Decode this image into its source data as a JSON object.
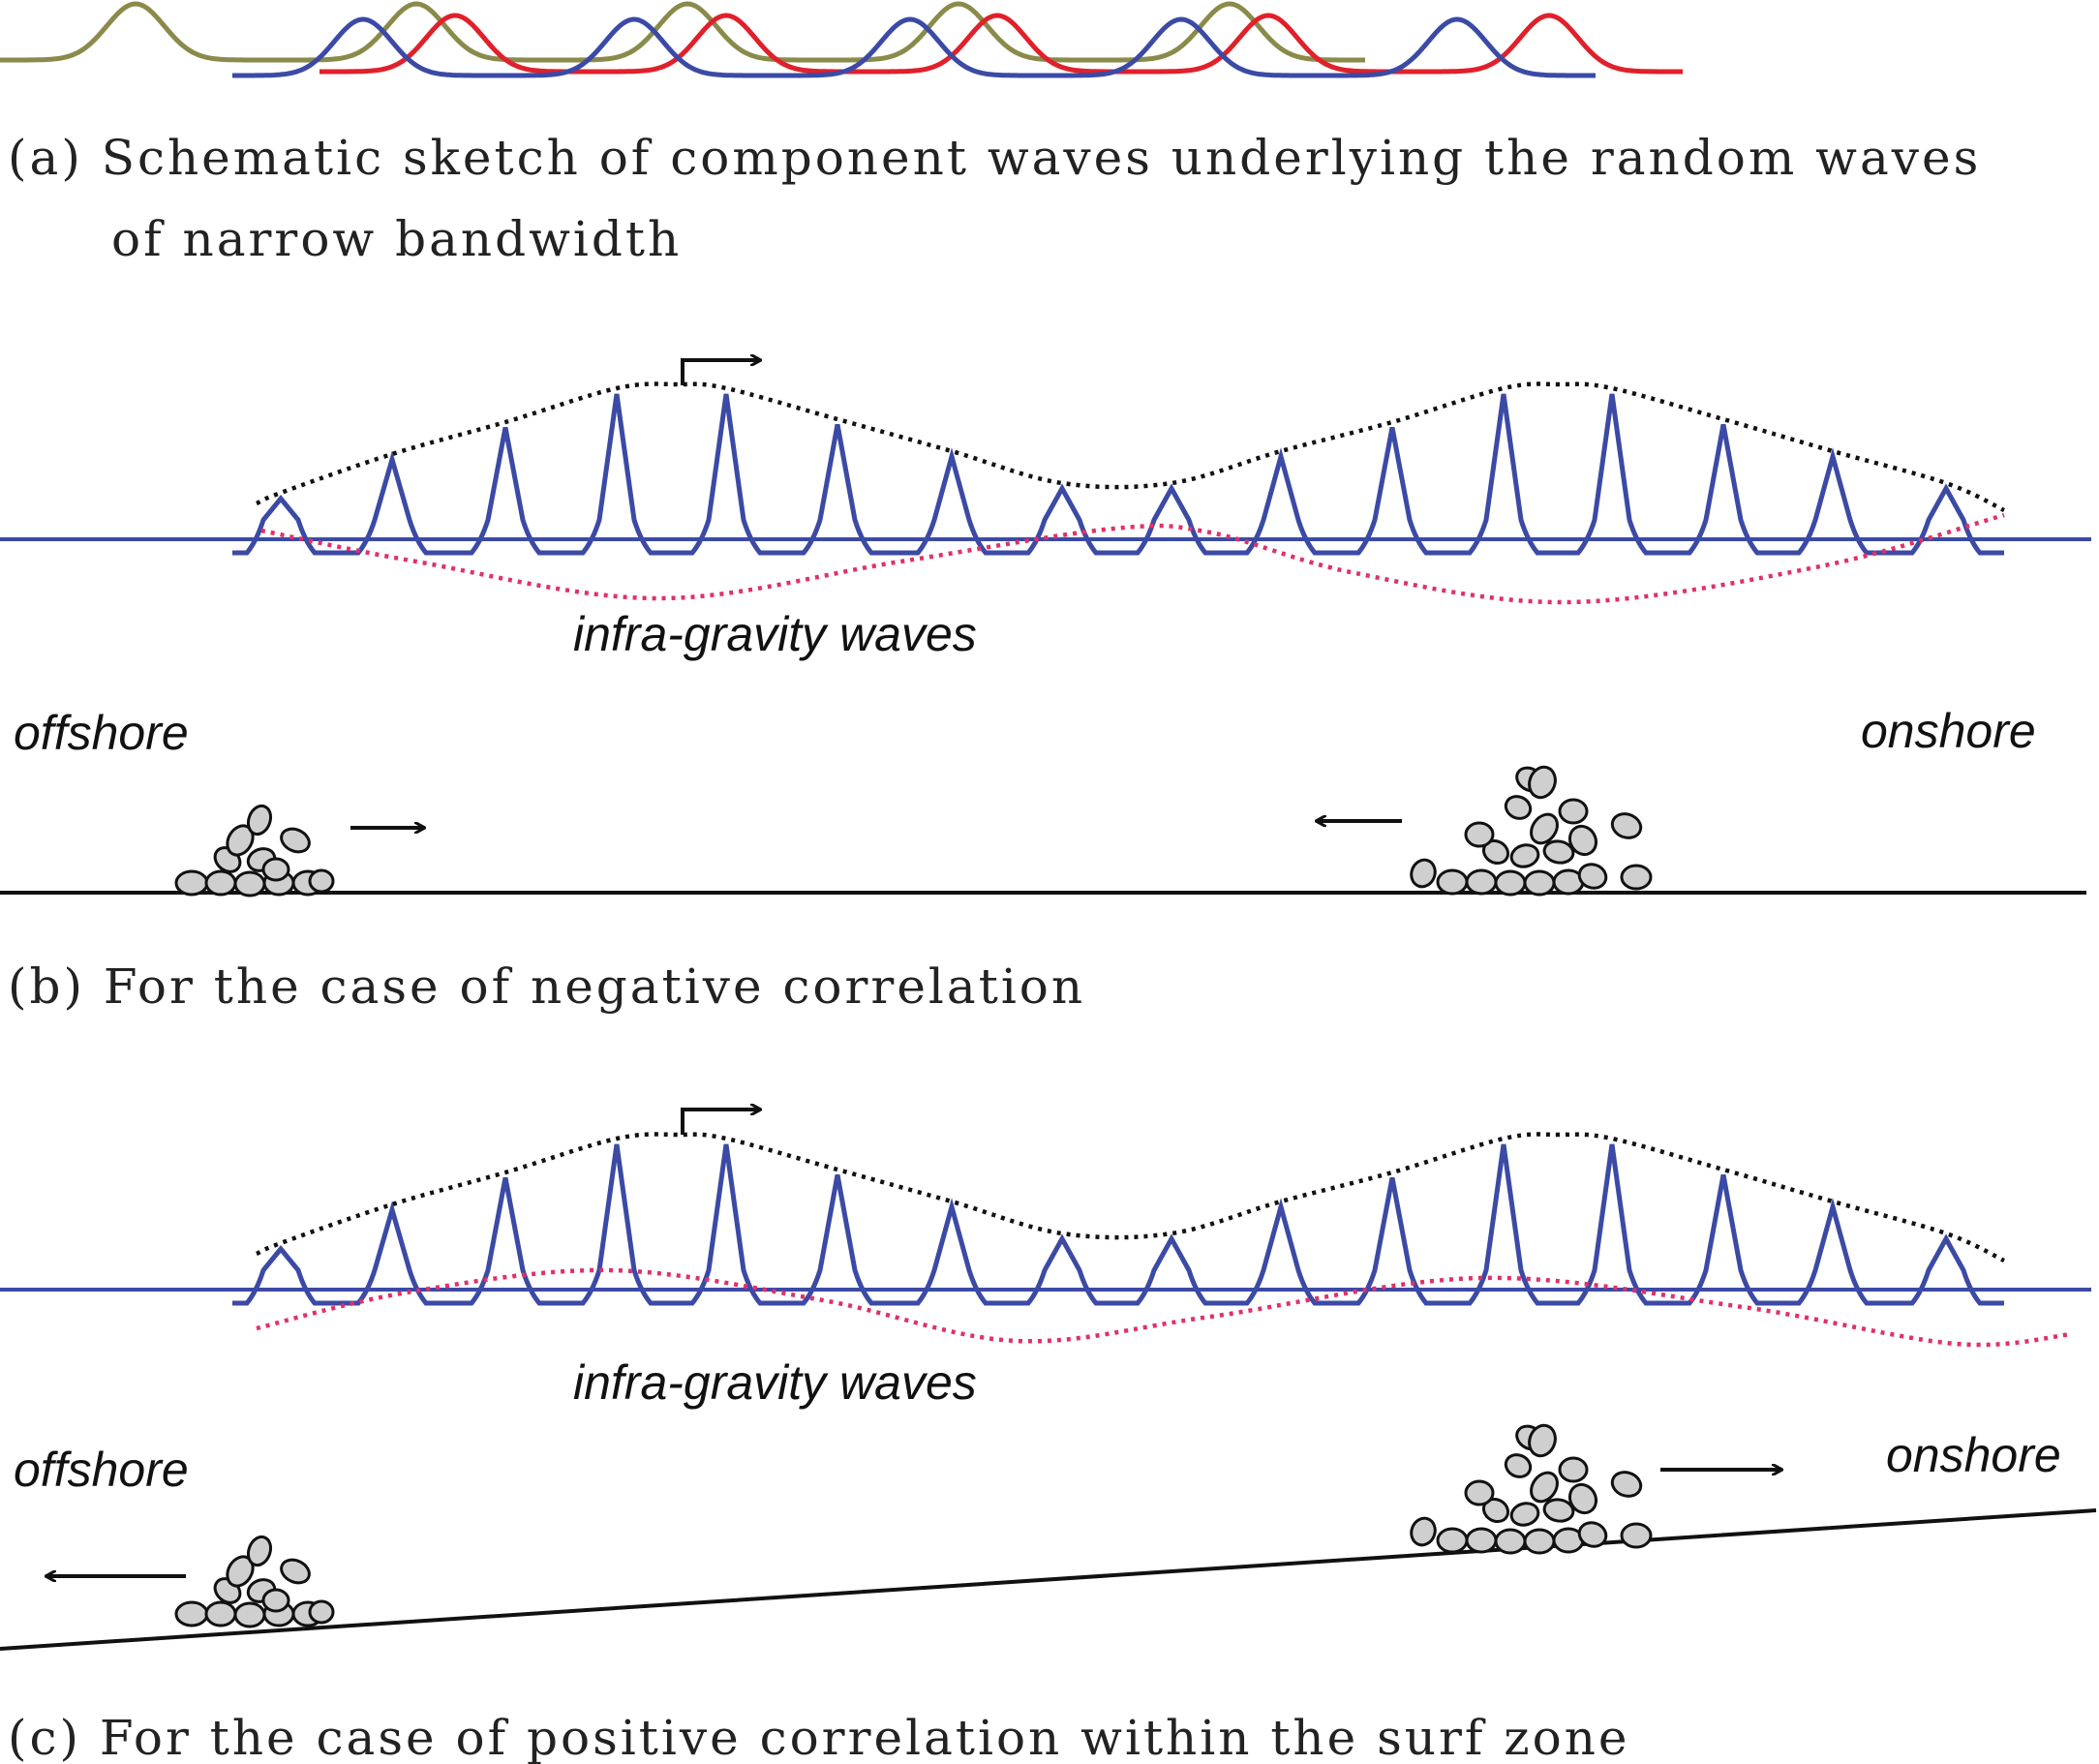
{
  "captions": {
    "a_line1": "(a) Schematic sketch of component waves underlying the random waves",
    "a_line2": "of narrow bandwidth",
    "b": "(b) For the case of negative correlation",
    "c": "(c) For the case of positive correlation within the surf zone"
  },
  "panel_b": {
    "infragravity_label": "infra-gravity waves",
    "offshore_label": "offshore",
    "onshore_label": "onshore",
    "correlation": "negative"
  },
  "panel_c": {
    "infragravity_label": "infra-gravity waves",
    "offshore_label": "offshore",
    "onshore_label": "onshore",
    "correlation": "positive"
  },
  "colors": {
    "wave_blue": "#3b4aa5",
    "wave_red": "#e0202a",
    "wave_olive": "#8a8a4a",
    "envelope": "#111111",
    "infragravity": "#e0306a",
    "pebble_fill": "#cfcfcf"
  }
}
